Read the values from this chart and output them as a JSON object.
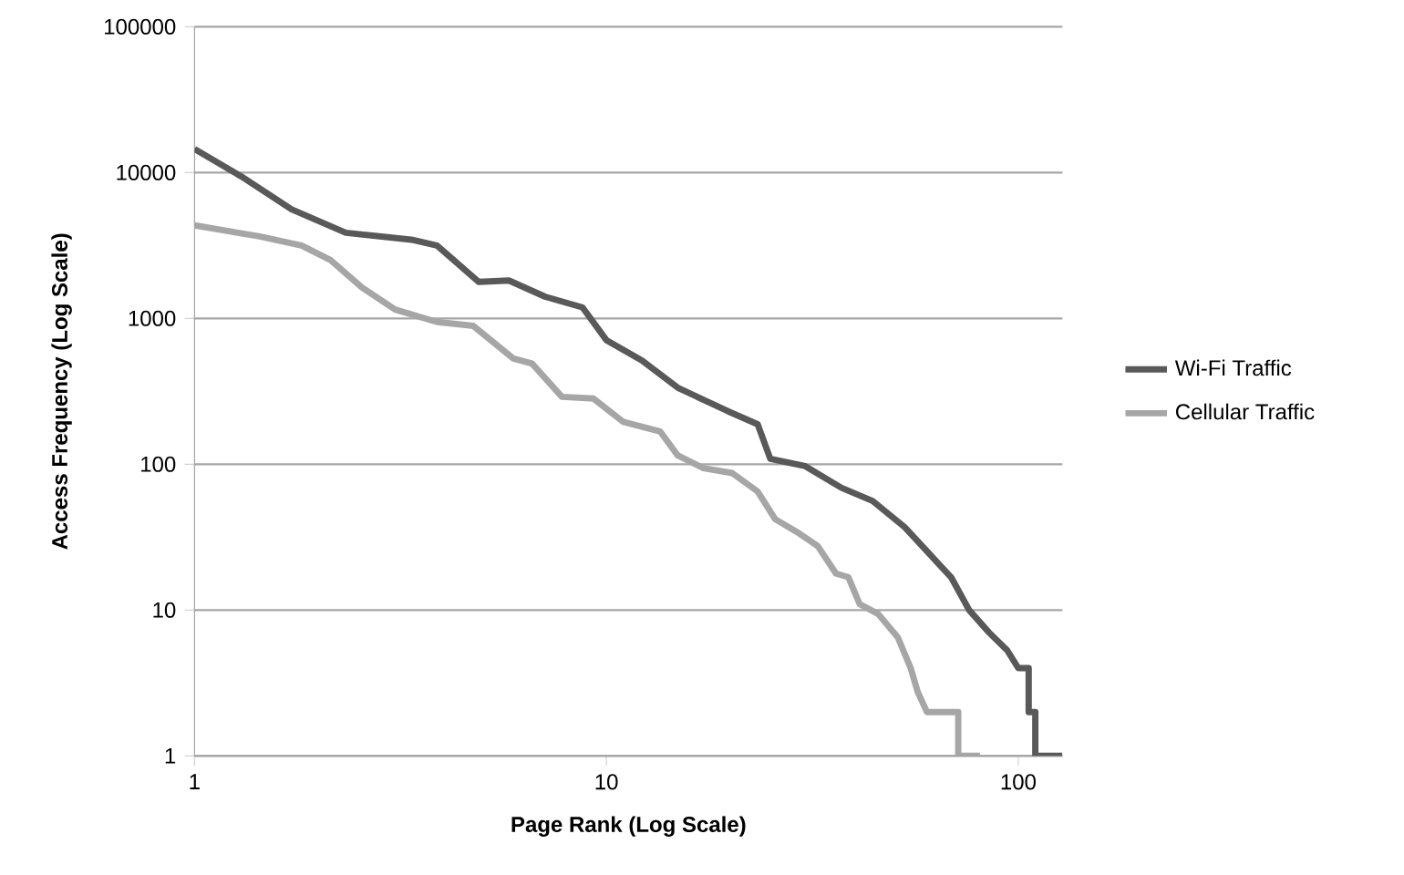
{
  "chart_data": {
    "type": "line",
    "xlabel": "Page Rank  (Log Scale)",
    "ylabel": "Access Frequency  (Log Scale)",
    "log": "xy",
    "grid": "y",
    "legend": "right",
    "line_style": "solid",
    "xlim": [
      1,
      128
    ],
    "ylim": [
      1,
      100000
    ],
    "xticks": [
      1,
      10,
      100
    ],
    "yticks": [
      1,
      10,
      100,
      1000,
      10000,
      100000
    ],
    "series": [
      {
        "name": "Wi-Fi Traffic",
        "color": "#595959",
        "x": [
          1,
          1.3,
          1.72,
          2.33,
          3.4,
          3.88,
          4.9,
          5.8,
          7.1,
          8.75,
          10,
          12.2,
          14.9,
          17.3,
          19.8,
          23.3,
          25,
          30.4,
          37.2,
          44.3,
          53,
          62.5,
          68.7,
          76,
          85,
          94,
          100,
          106,
          106,
          110,
          110,
          128
        ],
        "values": [
          14500,
          9400,
          5600,
          3870,
          3450,
          3160,
          1780,
          1820,
          1410,
          1190,
          710,
          515,
          335,
          275,
          230,
          188,
          109,
          97,
          69,
          56,
          37,
          22.4,
          16.8,
          10,
          7,
          5.3,
          4,
          4,
          2,
          2,
          1,
          1
        ]
      },
      {
        "name": "Cellular Traffic",
        "color": "#a6a6a6",
        "x": [
          1,
          1.43,
          1.82,
          2.14,
          2.55,
          3.07,
          3.88,
          4.75,
          5.95,
          6.6,
          7.8,
          9.3,
          11,
          13.5,
          14.9,
          17.2,
          20.2,
          23.3,
          25.7,
          29.4,
          32.6,
          36.1,
          38.7,
          41.2,
          45.7,
          51,
          54.8,
          57,
          60,
          71.5,
          71.5,
          80.7
        ],
        "values": [
          4350,
          3660,
          3160,
          2510,
          1630,
          1150,
          945,
          890,
          530,
          490,
          290,
          282,
          195,
          168,
          115,
          94,
          87,
          65,
          42,
          33.5,
          27.5,
          17.8,
          16.8,
          11,
          9.4,
          6.5,
          4,
          2.75,
          2,
          2,
          1,
          1
        ]
      }
    ]
  }
}
